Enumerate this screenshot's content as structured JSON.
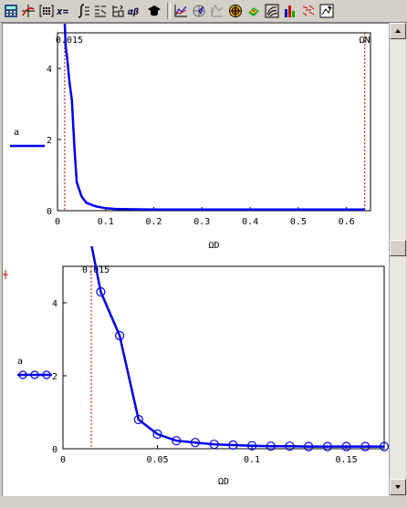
{
  "toolbar": {
    "buttons": [
      {
        "icon": "calculator-icon"
      },
      {
        "icon": "crosshair-graph-icon"
      },
      {
        "icon": "matrix-icon"
      },
      {
        "icon": "x-equals-icon",
        "label": "x="
      },
      {
        "icon": "integral-icon"
      },
      {
        "icon": "boolean-icon"
      },
      {
        "icon": "programming-icon"
      },
      {
        "icon": "greek-icon",
        "label": "αβ"
      },
      {
        "icon": "graduation-cap-icon"
      },
      {
        "icon": "xy-plot-icon"
      },
      {
        "icon": "polar-plot-icon"
      },
      {
        "icon": "surface-plot-icon"
      },
      {
        "icon": "contour-plot-icon"
      },
      {
        "icon": "3d-scatter-icon"
      },
      {
        "icon": "contour-3d-icon"
      },
      {
        "icon": "bar-plot-icon"
      },
      {
        "icon": "vector-field-icon"
      },
      {
        "icon": "image-plot-icon"
      }
    ]
  },
  "colors": {
    "curve": "#0000ee",
    "marker_line": "#cc0000",
    "axis": "#000000"
  },
  "chart_data": [
    {
      "type": "line",
      "legend": "a",
      "xlabel": "ΩD",
      "xlim": [
        0,
        0.65
      ],
      "ylim": [
        0,
        5
      ],
      "xticks": [
        "0",
        "0.1",
        "0.2",
        "0.3",
        "0.4",
        "0.5",
        "0.6"
      ],
      "yticks": [
        "0",
        "2",
        "4"
      ],
      "markers": [
        {
          "x": 0.015,
          "label": "0.015"
        },
        {
          "x": 0.638,
          "label": "ΩN"
        }
      ],
      "x": [
        0.015,
        0.017,
        0.02,
        0.025,
        0.03,
        0.035,
        0.04,
        0.05,
        0.06,
        0.08,
        0.1,
        0.12,
        0.15,
        0.2,
        0.3,
        0.4,
        0.5,
        0.6,
        0.638
      ],
      "y": [
        5.3,
        4.6,
        4.3,
        3.6,
        3.1,
        1.8,
        0.8,
        0.4,
        0.22,
        0.12,
        0.07,
        0.05,
        0.04,
        0.03,
        0.03,
        0.03,
        0.03,
        0.03,
        0.03
      ]
    },
    {
      "type": "line",
      "legend": "a",
      "xlabel": "ΩD",
      "xlim": [
        0,
        0.17
      ],
      "ylim": [
        0,
        5
      ],
      "xticks": [
        "0",
        "0.05",
        "0.1",
        "0.15"
      ],
      "yticks": [
        "0",
        "2",
        "4"
      ],
      "markers": [
        {
          "x": 0.015,
          "label": "0.015"
        }
      ],
      "x": [
        0.015,
        0.02,
        0.03,
        0.04,
        0.05,
        0.06,
        0.07,
        0.08,
        0.09,
        0.1,
        0.11,
        0.12,
        0.13,
        0.14,
        0.15,
        0.16,
        0.17
      ],
      "y": [
        5.6,
        4.3,
        3.1,
        0.8,
        0.4,
        0.22,
        0.17,
        0.12,
        0.1,
        0.08,
        0.07,
        0.07,
        0.06,
        0.06,
        0.06,
        0.06,
        0.06
      ],
      "point_x": [
        0.02,
        0.03,
        0.04,
        0.05,
        0.06,
        0.07,
        0.08,
        0.09,
        0.1,
        0.11,
        0.12,
        0.13,
        0.14,
        0.15,
        0.16,
        0.17
      ],
      "point_y": [
        4.3,
        3.1,
        0.8,
        0.4,
        0.22,
        0.17,
        0.12,
        0.1,
        0.08,
        0.07,
        0.07,
        0.06,
        0.06,
        0.06,
        0.06,
        0.06
      ]
    }
  ]
}
